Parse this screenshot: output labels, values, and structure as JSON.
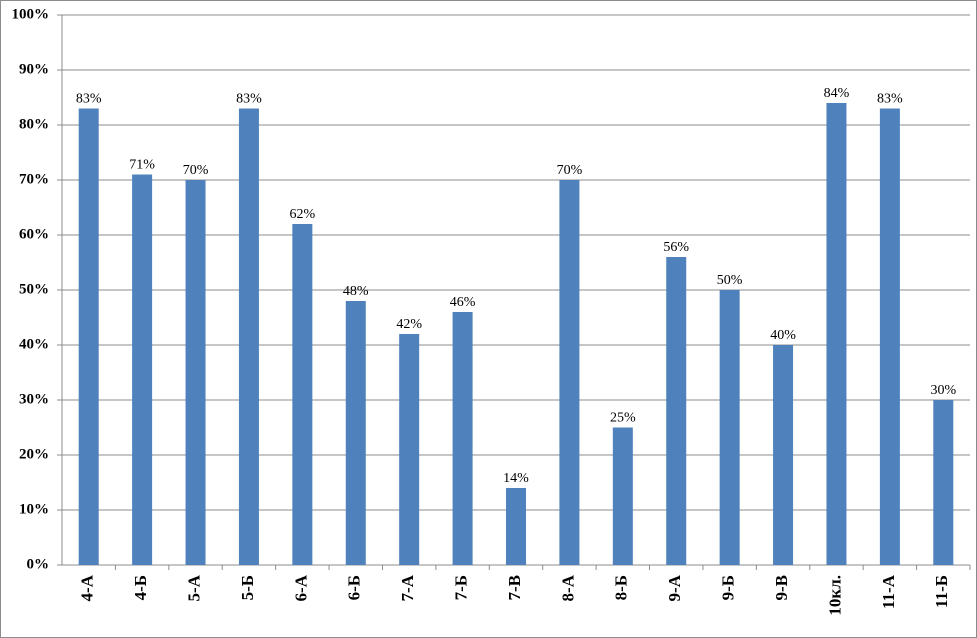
{
  "chart_data": {
    "type": "bar",
    "categories": [
      "4-А",
      "4-Б",
      "5-А",
      "5-Б",
      "6-А",
      "6-Б",
      "7-А",
      "7-Б",
      "7-В",
      "8-А",
      "8-Б",
      "9-А",
      "9-Б",
      "9-В",
      "10кл.",
      "11-А",
      "11-Б"
    ],
    "values": [
      83,
      71,
      70,
      83,
      62,
      48,
      42,
      46,
      14,
      70,
      25,
      56,
      50,
      40,
      84,
      83,
      30
    ],
    "value_labels": [
      "83%",
      "71%",
      "70%",
      "83%",
      "62%",
      "48%",
      "42%",
      "46%",
      "14%",
      "70%",
      "25%",
      "56%",
      "50%",
      "40%",
      "84%",
      "83%",
      "30%"
    ],
    "color": "#4f81bd",
    "ylim": [
      0,
      100
    ],
    "yticks": [
      {
        "value": 0,
        "label": "0%"
      },
      {
        "value": 10,
        "label": "10%"
      },
      {
        "value": 20,
        "label": "20%"
      },
      {
        "value": 30,
        "label": "30%"
      },
      {
        "value": 40,
        "label": "40%"
      },
      {
        "value": 50,
        "label": "50%"
      },
      {
        "value": 60,
        "label": "60%"
      },
      {
        "value": 70,
        "label": "70%"
      },
      {
        "value": 80,
        "label": "80%"
      },
      {
        "value": 90,
        "label": "90%"
      },
      {
        "value": 100,
        "label": "100%"
      }
    ],
    "grid": true
  }
}
